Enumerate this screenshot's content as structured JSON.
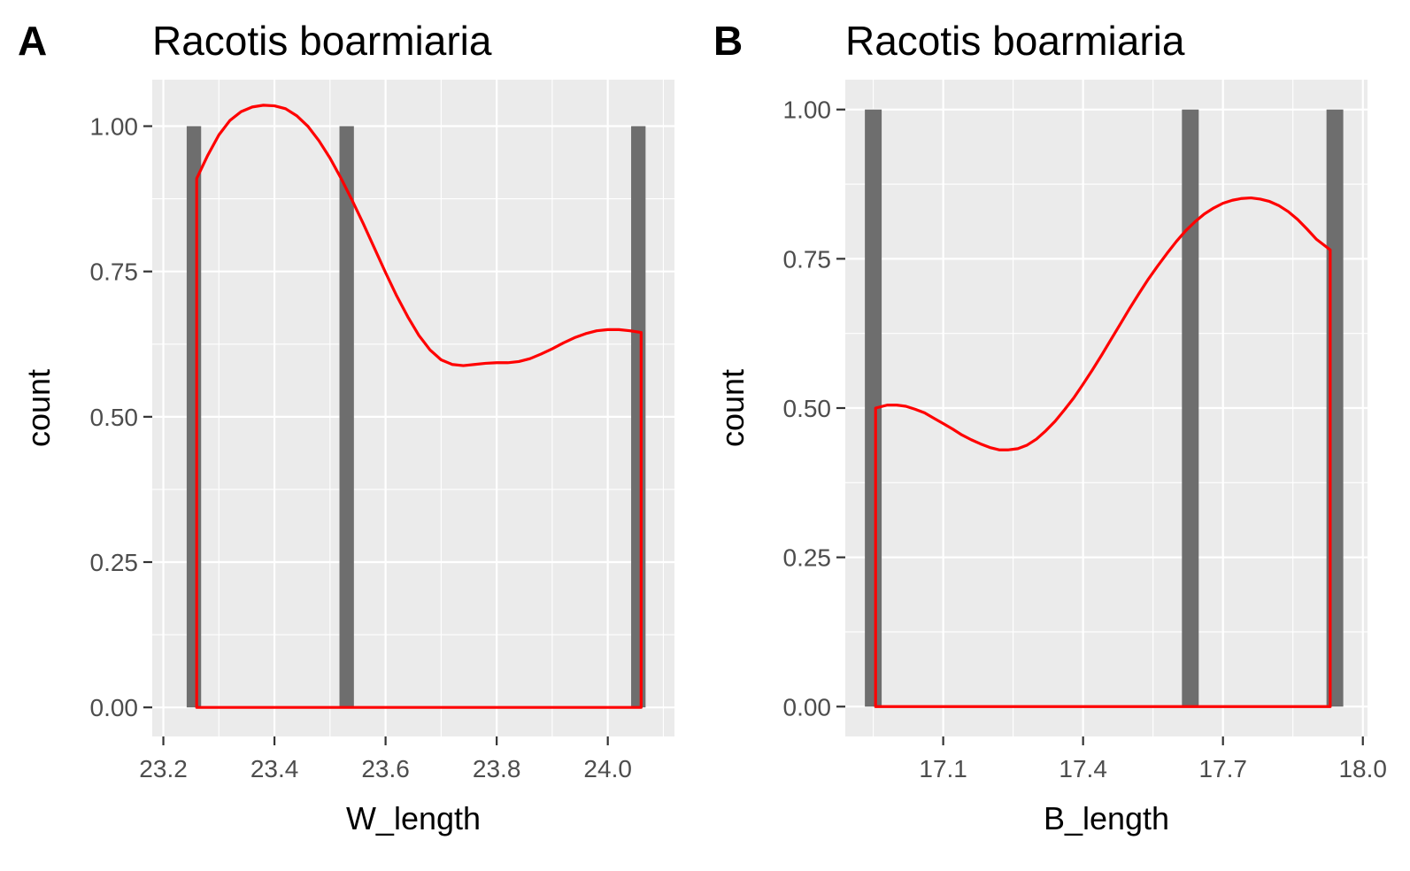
{
  "chart_data": [
    {
      "type": "bar",
      "panel_tag": "A",
      "title": "Racotis boarmiaria",
      "xlabel": "W_length",
      "ylabel": "count",
      "xlim": [
        23.18,
        24.12
      ],
      "ylim": [
        -0.05,
        1.08
      ],
      "x_ticks": [
        23.2,
        23.4,
        23.6,
        23.8,
        24.0
      ],
      "x_tick_labels": [
        "23.2",
        "23.4",
        "23.6",
        "23.8",
        "24.0"
      ],
      "y_ticks": [
        0.0,
        0.25,
        0.5,
        0.75,
        1.0
      ],
      "y_tick_labels": [
        "0.00",
        "0.25",
        "0.50",
        "0.75",
        "1.00"
      ],
      "bar_width": 0.026,
      "bars": [
        {
          "x": 23.255,
          "count": 1
        },
        {
          "x": 23.53,
          "count": 1
        },
        {
          "x": 24.055,
          "count": 1
        }
      ],
      "density": {
        "x": [
          23.26,
          23.28,
          23.3,
          23.32,
          23.34,
          23.36,
          23.38,
          23.4,
          23.42,
          23.44,
          23.46,
          23.48,
          23.5,
          23.52,
          23.54,
          23.56,
          23.58,
          23.6,
          23.62,
          23.64,
          23.66,
          23.68,
          23.7,
          23.72,
          23.74,
          23.76,
          23.78,
          23.8,
          23.82,
          23.84,
          23.86,
          23.88,
          23.9,
          23.92,
          23.94,
          23.96,
          23.98,
          24.0,
          24.02,
          24.04,
          24.06
        ],
        "y": [
          0.91,
          0.95,
          0.985,
          1.01,
          1.025,
          1.033,
          1.036,
          1.035,
          1.03,
          1.018,
          1.0,
          0.975,
          0.945,
          0.91,
          0.872,
          0.832,
          0.79,
          0.748,
          0.708,
          0.672,
          0.64,
          0.615,
          0.598,
          0.59,
          0.588,
          0.59,
          0.592,
          0.593,
          0.593,
          0.595,
          0.6,
          0.608,
          0.617,
          0.627,
          0.636,
          0.643,
          0.648,
          0.65,
          0.65,
          0.648,
          0.645
        ]
      },
      "colors": {
        "bar": "#6e6e6e",
        "density": "#ff0000",
        "panel": "#ebebeb",
        "grid": "#ffffff"
      }
    },
    {
      "type": "bar",
      "panel_tag": "B",
      "title": "Racotis boarmiaria",
      "xlabel": "B_length",
      "ylabel": "count",
      "xlim": [
        16.89,
        18.01
      ],
      "ylim": [
        -0.05,
        1.05
      ],
      "x_ticks": [
        17.1,
        17.4,
        17.7,
        18.0
      ],
      "x_tick_labels": [
        "17.1",
        "17.4",
        "17.7",
        "18.0"
      ],
      "y_ticks": [
        0.0,
        0.25,
        0.5,
        0.75,
        1.0
      ],
      "y_tick_labels": [
        "0.00",
        "0.25",
        "0.50",
        "0.75",
        "1.00"
      ],
      "bar_width": 0.036,
      "bars": [
        {
          "x": 16.95,
          "count": 1
        },
        {
          "x": 17.63,
          "count": 1
        },
        {
          "x": 17.94,
          "count": 1
        }
      ],
      "density": {
        "x": [
          16.955,
          16.98,
          17.0,
          17.02,
          17.04,
          17.06,
          17.08,
          17.1,
          17.12,
          17.14,
          17.16,
          17.18,
          17.2,
          17.22,
          17.24,
          17.26,
          17.28,
          17.3,
          17.32,
          17.34,
          17.36,
          17.38,
          17.4,
          17.42,
          17.44,
          17.46,
          17.48,
          17.5,
          17.52,
          17.54,
          17.56,
          17.58,
          17.6,
          17.62,
          17.64,
          17.66,
          17.68,
          17.7,
          17.72,
          17.74,
          17.76,
          17.78,
          17.8,
          17.82,
          17.84,
          17.86,
          17.88,
          17.9,
          17.93
        ],
        "y": [
          0.5,
          0.505,
          0.505,
          0.503,
          0.498,
          0.492,
          0.483,
          0.474,
          0.465,
          0.455,
          0.447,
          0.44,
          0.434,
          0.43,
          0.43,
          0.432,
          0.438,
          0.448,
          0.462,
          0.478,
          0.497,
          0.517,
          0.54,
          0.564,
          0.589,
          0.615,
          0.641,
          0.667,
          0.692,
          0.716,
          0.738,
          0.759,
          0.779,
          0.797,
          0.812,
          0.825,
          0.835,
          0.843,
          0.848,
          0.851,
          0.852,
          0.85,
          0.846,
          0.839,
          0.829,
          0.816,
          0.8,
          0.783,
          0.765
        ]
      },
      "colors": {
        "bar": "#6e6e6e",
        "density": "#ff0000",
        "panel": "#ebebeb",
        "grid": "#ffffff"
      }
    }
  ]
}
